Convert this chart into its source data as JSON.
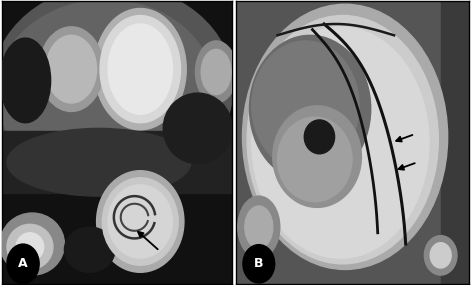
{
  "figure_width": 4.71,
  "figure_height": 2.85,
  "dpi": 100,
  "background_color": "#ffffff",
  "label_A": "A",
  "label_B": "B",
  "label_fontsize": 9
}
